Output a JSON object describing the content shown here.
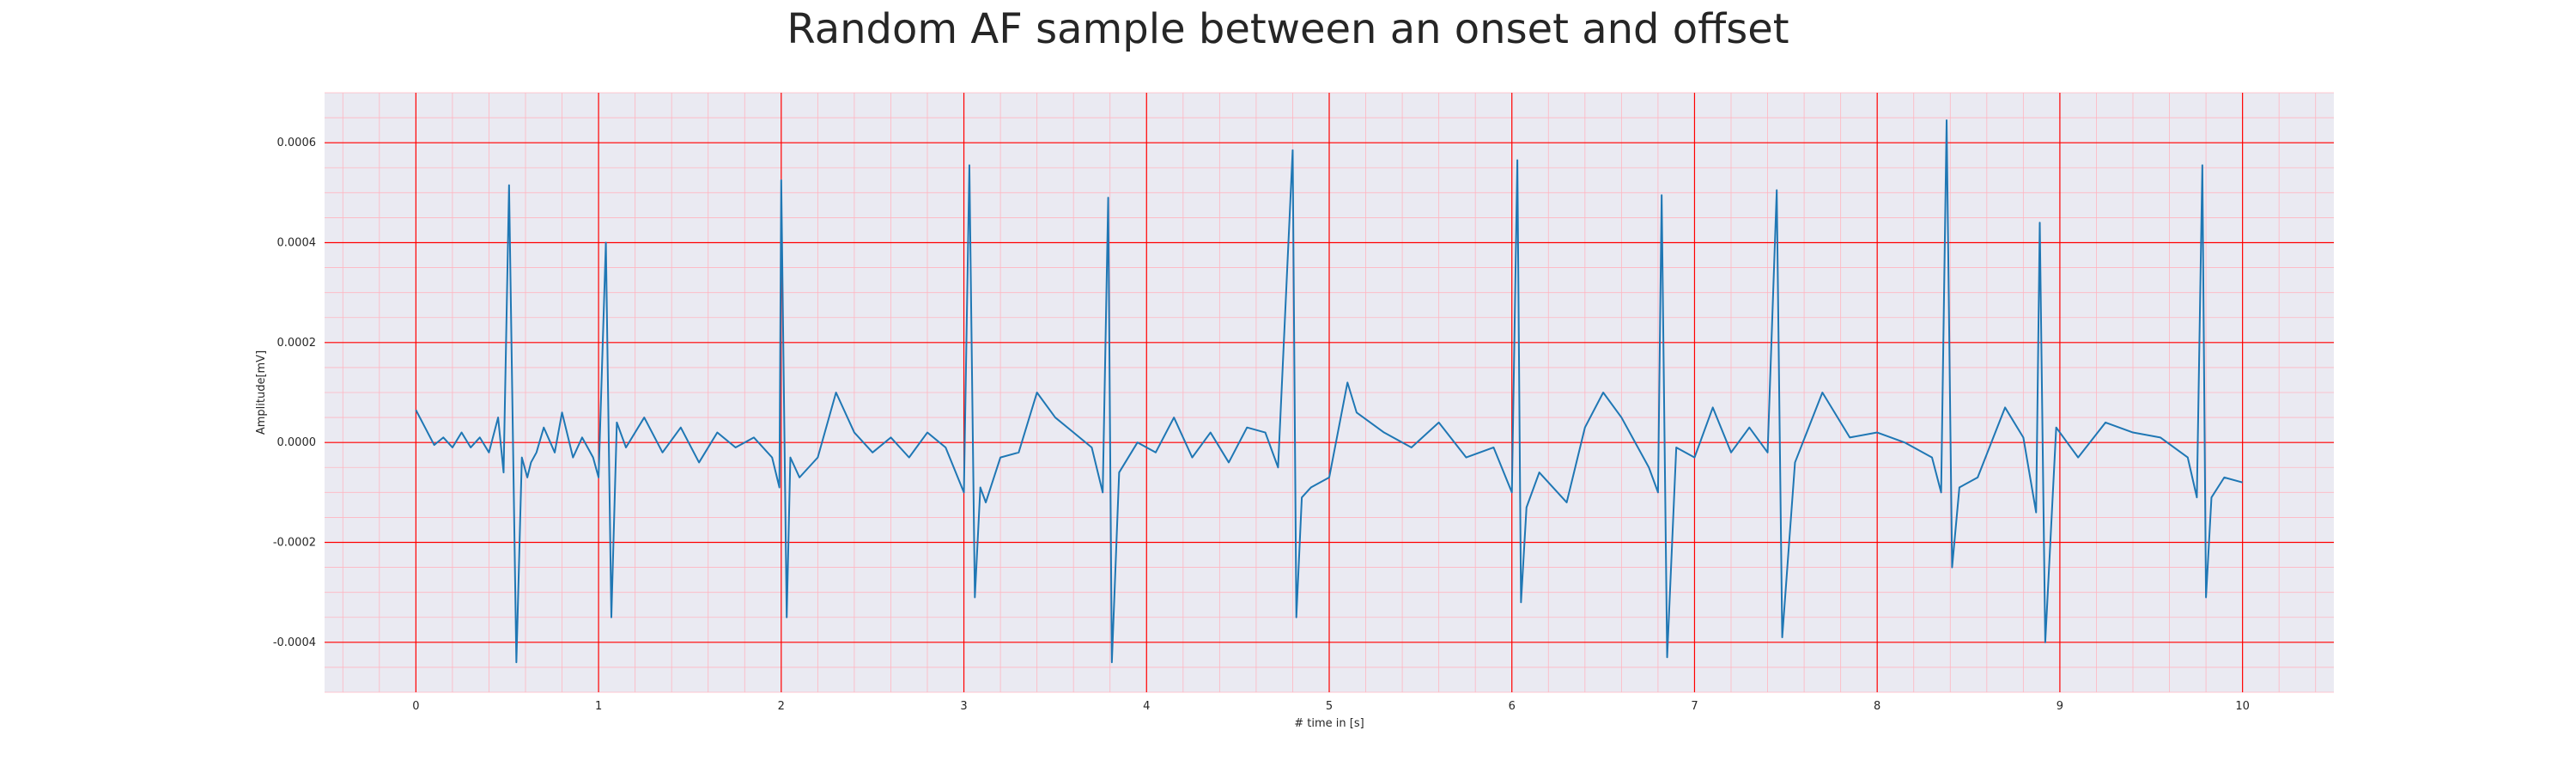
{
  "chart_data": {
    "type": "line",
    "title": "Random AF sample between an onset and offset",
    "xlabel": "# time in [s]",
    "ylabel": "Amplitude[mV]",
    "xlim": [
      -0.5,
      10.5
    ],
    "ylim": [
      -0.0005,
      0.0007
    ],
    "x_ticks": [
      0,
      1,
      2,
      3,
      4,
      5,
      6,
      7,
      8,
      9,
      10
    ],
    "x_tick_labels": [
      "0",
      "1",
      "2",
      "3",
      "4",
      "5",
      "6",
      "7",
      "8",
      "9",
      "10"
    ],
    "y_ticks": [
      -0.0004,
      -0.0002,
      0.0,
      0.0002,
      0.0004,
      0.0006
    ],
    "y_tick_labels": [
      "-0.0004",
      "-0.0002",
      "0.0000",
      "0.0002",
      "0.0004",
      "0.0006"
    ],
    "grid": true,
    "minor_grid": true,
    "colors": {
      "line": "#1f77b4",
      "plot_background": "#eaeaf2",
      "major_grid": "#ff0000",
      "minor_grid": "#ffb6c1"
    },
    "series": [
      {
        "x": [
          0,
          0.05,
          0.1,
          0.15,
          0.2,
          0.25,
          0.3,
          0.35,
          0.4,
          0.45,
          0.48,
          0.51,
          0.55,
          0.58,
          0.61,
          0.63,
          0.66,
          0.7,
          0.76,
          0.8,
          0.86,
          0.91,
          0.97,
          1.0,
          1.04,
          1.07,
          1.1,
          1.15,
          1.25,
          1.35,
          1.45,
          1.55,
          1.65,
          1.75,
          1.85,
          1.95,
          1.99,
          2.0,
          2.03,
          2.05,
          2.1,
          2.2,
          2.3,
          2.4,
          2.5,
          2.6,
          2.7,
          2.8,
          2.9,
          3.0,
          3.03,
          3.06,
          3.09,
          3.12,
          3.2,
          3.3,
          3.4,
          3.5,
          3.6,
          3.7,
          3.76,
          3.79,
          3.81,
          3.85,
          3.95,
          4.05,
          4.15,
          4.25,
          4.35,
          4.45,
          4.55,
          4.65,
          4.72,
          4.8,
          4.82,
          4.85,
          4.9,
          5.0,
          5.1,
          5.15,
          5.3,
          5.45,
          5.6,
          5.75,
          5.9,
          6.0,
          6.03,
          6.05,
          6.08,
          6.15,
          6.3,
          6.4,
          6.5,
          6.6,
          6.75,
          6.8,
          6.82,
          6.85,
          6.9,
          7.0,
          7.1,
          7.2,
          7.3,
          7.4,
          7.45,
          7.48,
          7.55,
          7.7,
          7.85,
          8.0,
          8.15,
          8.3,
          8.35,
          8.38,
          8.41,
          8.45,
          8.55,
          8.7,
          8.8,
          8.87,
          8.89,
          8.92,
          8.98,
          9.1,
          9.25,
          9.4,
          9.55,
          9.7,
          9.75,
          9.78,
          9.8,
          9.83,
          9.9,
          10.0
        ],
        "y": [
          6.5e-05,
          3e-05,
          -5e-06,
          1e-05,
          -1e-05,
          2e-05,
          -1e-05,
          1e-05,
          -2e-05,
          5e-05,
          -6e-05,
          0.000515,
          -0.00044,
          -3e-05,
          -7e-05,
          -4e-05,
          -2e-05,
          3e-05,
          -2e-05,
          6e-05,
          -3e-05,
          1e-05,
          -3e-05,
          -7e-05,
          0.0004,
          -0.00035,
          4e-05,
          -1e-05,
          5e-05,
          -2e-05,
          3e-05,
          -4e-05,
          2e-05,
          -1e-05,
          1e-05,
          -3e-05,
          -9e-05,
          0.000525,
          -0.00035,
          -3e-05,
          -7e-05,
          -3e-05,
          0.0001,
          2e-05,
          -2e-05,
          1e-05,
          -3e-05,
          2e-05,
          -1e-05,
          -0.0001,
          0.000555,
          -0.00031,
          -9e-05,
          -0.00012,
          -3e-05,
          -2e-05,
          0.0001,
          5e-05,
          2e-05,
          -1e-05,
          -0.0001,
          0.00049,
          -0.00044,
          -6e-05,
          0.0,
          -2e-05,
          5e-05,
          -3e-05,
          2e-05,
          -4e-05,
          3e-05,
          2e-05,
          -5e-05,
          0.000585,
          -0.00035,
          -0.00011,
          -9e-05,
          -7e-05,
          0.00012,
          6e-05,
          2e-05,
          -1e-05,
          4e-05,
          -3e-05,
          -1e-05,
          -0.0001,
          0.000565,
          -0.00032,
          -0.00013,
          -6e-05,
          -0.00012,
          3e-05,
          0.0001,
          5e-05,
          -5e-05,
          -0.0001,
          0.000495,
          -0.00043,
          -1e-05,
          -3e-05,
          7e-05,
          -2e-05,
          3e-05,
          -2e-05,
          0.000505,
          -0.00039,
          -4e-05,
          0.0001,
          1e-05,
          2e-05,
          0.0,
          -3e-05,
          -0.0001,
          0.000645,
          -0.00025,
          -9e-05,
          -7e-05,
          7e-05,
          1e-05,
          -0.00014,
          0.00044,
          -0.0004,
          3e-05,
          -3e-05,
          4e-05,
          2e-05,
          1e-05,
          -3e-05,
          -0.00011,
          0.000555,
          -0.00031,
          -0.00011,
          -7e-05,
          -8e-05
        ]
      }
    ]
  }
}
